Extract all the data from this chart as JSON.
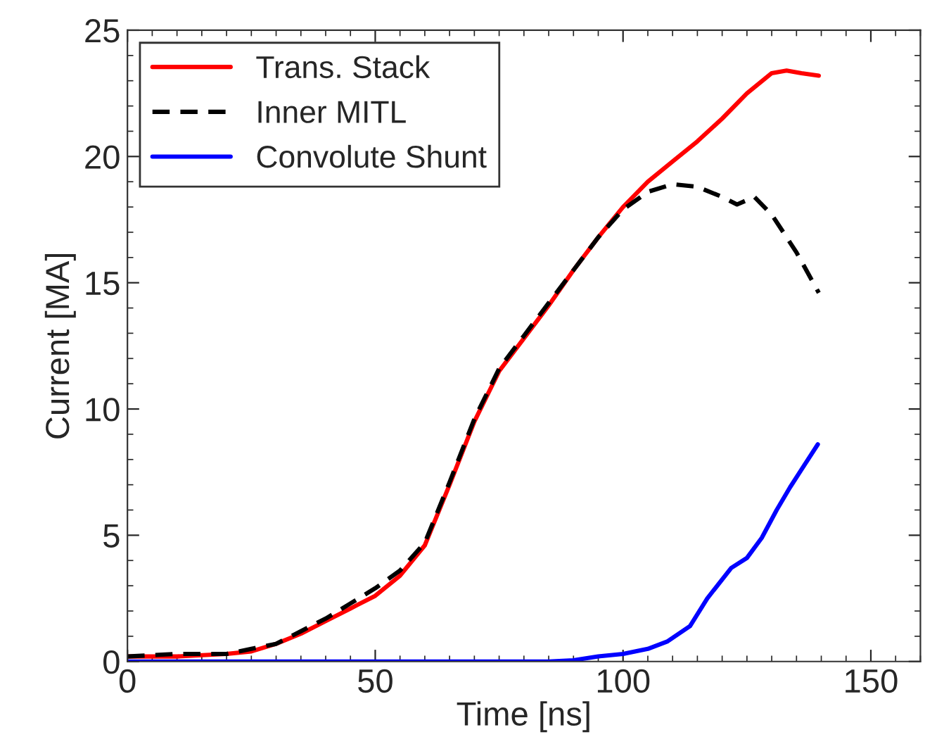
{
  "chart_data": {
    "type": "line",
    "xlabel": "Time [ns]",
    "ylabel": "Current [MA]",
    "xlim": [
      0,
      160
    ],
    "xticks": [
      0,
      50,
      100,
      150
    ],
    "ylim": [
      0,
      25
    ],
    "yticks": [
      0,
      5,
      10,
      15,
      20,
      25
    ],
    "grid": false,
    "legend": "top left",
    "marker": "none",
    "series": [
      {
        "name": "Trans. Stack",
        "color": "#ff0000",
        "line_style": "solid",
        "x": [
          0,
          10,
          20,
          25,
          30,
          35,
          40,
          45,
          50,
          55,
          60,
          65,
          70,
          75,
          80,
          85,
          90,
          95,
          100,
          105,
          110,
          115,
          120,
          125,
          130,
          133,
          136,
          139.5
        ],
        "values": [
          0.2,
          0.2,
          0.3,
          0.4,
          0.7,
          1.1,
          1.6,
          2.1,
          2.6,
          3.4,
          4.6,
          7.0,
          9.5,
          11.5,
          12.8,
          14.1,
          15.5,
          16.8,
          18.0,
          19.0,
          19.8,
          20.6,
          21.5,
          22.5,
          23.3,
          23.4,
          23.3,
          23.2
        ]
      },
      {
        "name": "Inner MITL",
        "color": "#000000",
        "line_style": "dashed",
        "x": [
          0,
          10,
          20,
          25,
          30,
          35,
          40,
          45,
          50,
          55,
          60,
          65,
          70,
          75,
          80,
          85,
          90,
          95,
          100,
          105,
          110,
          115,
          120,
          123,
          126.5,
          130,
          135,
          139.5
        ],
        "values": [
          0.2,
          0.3,
          0.3,
          0.5,
          0.7,
          1.2,
          1.7,
          2.3,
          2.9,
          3.6,
          4.7,
          7.1,
          9.6,
          11.6,
          12.9,
          14.2,
          15.5,
          16.8,
          17.9,
          18.6,
          18.9,
          18.8,
          18.4,
          18.1,
          18.4,
          17.7,
          16.2,
          14.6
        ]
      },
      {
        "name": "Convolute Shunt",
        "color": "#0000ff",
        "line_style": "solid",
        "x": [
          0,
          85,
          90,
          95,
          100,
          105,
          109,
          113.5,
          117,
          121.8,
          125,
          128,
          131,
          133.7,
          136,
          139.3
        ],
        "values": [
          0,
          0,
          0.05,
          0.2,
          0.3,
          0.5,
          0.8,
          1.4,
          2.5,
          3.7,
          4.1,
          4.9,
          6.0,
          6.9,
          7.6,
          8.6
        ]
      }
    ]
  }
}
